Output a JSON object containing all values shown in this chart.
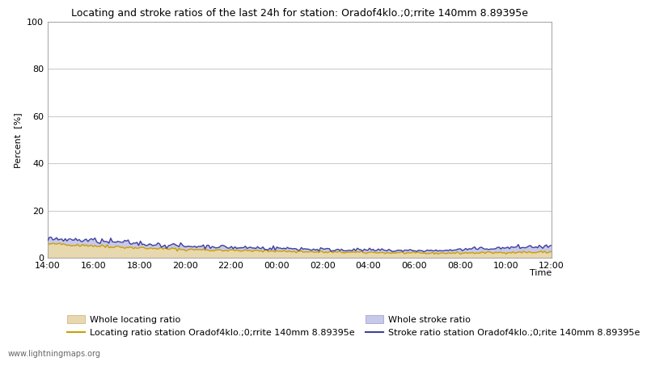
{
  "title": "Locating and stroke ratios of the last 24h for station: Oradof4klo.;0;rrite 140mm 8.89395e",
  "ylabel": "Percent  [%]",
  "xlabel": "Time",
  "ylim": [
    0,
    100
  ],
  "yticks": [
    0,
    20,
    40,
    60,
    80,
    100
  ],
  "xtick_labels": [
    "14:00",
    "16:00",
    "18:00",
    "20:00",
    "22:00",
    "00:00",
    "02:00",
    "04:00",
    "06:00",
    "08:00",
    "10:00",
    "12:00"
  ],
  "watermark": "www.lightningmaps.org",
  "fill_locating_color": "#e8d8b0",
  "fill_stroke_color": "#c8c8e8",
  "line_locating_color": "#c8a000",
  "line_stroke_color": "#4040a0",
  "legend_labels": [
    "Whole locating ratio",
    "Locating ratio station Oradof4klo.;0;rrite 140mm 8.89395e",
    "Whole stroke ratio",
    "Stroke ratio station Oradof4klo.;0;rite 140mm 8.89395e"
  ],
  "background_color": "#ffffff",
  "grid_color": "#cccccc",
  "title_fontsize": 9,
  "tick_fontsize": 8,
  "ylabel_fontsize": 8,
  "legend_fontsize": 8
}
